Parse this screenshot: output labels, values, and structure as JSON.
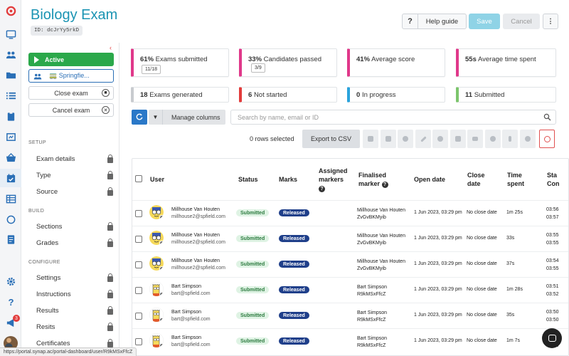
{
  "header": {
    "title": "Biology Exam",
    "id_badge": "ID: dcJrYy5rkD",
    "help_q": "?",
    "help_label": "Help guide",
    "save_label": "Save",
    "cancel_label": "Cancel",
    "more_label": "⋮"
  },
  "rail": {
    "icons": [
      "logo-icon",
      "monitor-icon",
      "users-icon",
      "folder-icon",
      "list-icon",
      "clipboard-icon",
      "frame-icon",
      "basket-icon",
      "calendar-icon",
      "grid-icon",
      "circle-icon",
      "document-icon",
      "settings-icon",
      "help-icon",
      "megaphone-icon"
    ],
    "notification_count": "3"
  },
  "sidebar": {
    "active_label": "Active",
    "location_label": "🚃 Springfie...",
    "close_exam_label": "Close exam",
    "cancel_exam_label": "Cancel exam",
    "sections": [
      {
        "title": "SETUP",
        "items": [
          "Exam details",
          "Type",
          "Source"
        ]
      },
      {
        "title": "BUILD",
        "items": [
          "Sections",
          "Grades"
        ]
      },
      {
        "title": "CONFIGURE",
        "items": [
          "Settings",
          "Instructions",
          "Results",
          "Resits",
          "Certificates"
        ]
      }
    ]
  },
  "stats": {
    "exams_submitted": {
      "pct": "61%",
      "label": "Exams submitted",
      "frac": "11/18"
    },
    "candidates_passed": {
      "pct": "33%",
      "label": "Candidates passed",
      "frac": "3/9"
    },
    "average_score": {
      "pct": "41%",
      "label": "Average score"
    },
    "average_time": {
      "value": "55s",
      "label": "Average time spent"
    },
    "generated": {
      "count": "18",
      "label": "Exams generated"
    },
    "not_started": {
      "count": "6",
      "label": "Not started"
    },
    "in_progress": {
      "count": "0",
      "label": "In progress"
    },
    "submitted": {
      "count": "11",
      "label": "Submitted"
    }
  },
  "colors": {
    "pink": "#e0388a",
    "grey": "#c8cbcf",
    "red": "#e23b3b",
    "blue": "#2aa3dc",
    "green": "#7cc56c",
    "accent": "#1b94b3"
  },
  "toolbar": {
    "manage_columns": "Manage columns",
    "search_placeholder": "Search by name, email or ID",
    "rows_selected": "0 rows selected",
    "export_csv": "Export to CSV",
    "action_icons": [
      "lock-icon",
      "unlock-icon",
      "user-icon",
      "pencil-icon",
      "check-circle-icon",
      "rss-icon",
      "mail-icon",
      "clock-icon",
      "bolt-icon",
      "redo-icon",
      "block-icon"
    ]
  },
  "table": {
    "columns": {
      "user": "User",
      "status": "Status",
      "marks": "Marks",
      "assigned_markers": "Assigned markers",
      "finalised_marker": "Finalised marker",
      "open_date": "Open date",
      "close_date": "Close date",
      "time_spent": "Time spent",
      "start_l1": "Sta",
      "start_l2": "Con"
    },
    "rows": [
      {
        "name": "Millhouse Van Houten",
        "email": "millhouse2@spfield.com",
        "status": "Submitted",
        "marks": "Released",
        "fm_name": "Millhouse Van Houten",
        "fm_id": "ZvGvBKMyib",
        "open": "1 Jun 2023, 03:29 pm",
        "close": "No close date",
        "time": "1m 25s",
        "start_1": "03:56",
        "start_2": "03:57",
        "avatar": "milhouse"
      },
      {
        "name": "Millhouse Van Houten",
        "email": "millhouse2@spfield.com",
        "status": "Submitted",
        "marks": "Released",
        "fm_name": "Millhouse Van Houten",
        "fm_id": "ZvGvBKMyib",
        "open": "1 Jun 2023, 03:29 pm",
        "close": "No close date",
        "time": "33s",
        "start_1": "03:55",
        "start_2": "03:55",
        "avatar": "milhouse"
      },
      {
        "name": "Millhouse Van Houten",
        "email": "millhouse2@spfield.com",
        "status": "Submitted",
        "marks": "Released",
        "fm_name": "Millhouse Van Houten",
        "fm_id": "ZvGvBKMyib",
        "open": "1 Jun 2023, 03:29 pm",
        "close": "No close date",
        "time": "37s",
        "start_1": "03:54",
        "start_2": "03:55",
        "avatar": "milhouse"
      },
      {
        "name": "Bart Simpson",
        "email": "bart@spfield.com",
        "status": "Submitted",
        "marks": "Released",
        "fm_name": "Bart Simpson",
        "fm_id": "R9kMSxFfcZ",
        "open": "1 Jun 2023, 03:29 pm",
        "close": "No close date",
        "time": "1m 28s",
        "start_1": "03:51",
        "start_2": "03:52",
        "avatar": "bart"
      },
      {
        "name": "Bart Simpson",
        "email": "bart@spfield.com",
        "status": "Submitted",
        "marks": "Released",
        "fm_name": "Bart Simpson",
        "fm_id": "R9kMSxFfcZ",
        "open": "1 Jun 2023, 03:29 pm",
        "close": "No close date",
        "time": "35s",
        "start_1": "03:50",
        "start_2": "03:50",
        "avatar": "bart"
      },
      {
        "name": "Bart Simpson",
        "email": "bart@spfield.com",
        "status": "Submitted",
        "marks": "Released",
        "fm_name": "Bart Simpson",
        "fm_id": "R9kMSxFfcZ",
        "open": "1 Jun 2023, 03:29 pm",
        "close": "No close date",
        "time": "1m 7s",
        "start_1": "03:49",
        "start_2": "03:49",
        "avatar": "bart"
      }
    ]
  },
  "status_url": "https://portal.synap.ac/portal-dashboard/user/R9kMSxFfcZ"
}
